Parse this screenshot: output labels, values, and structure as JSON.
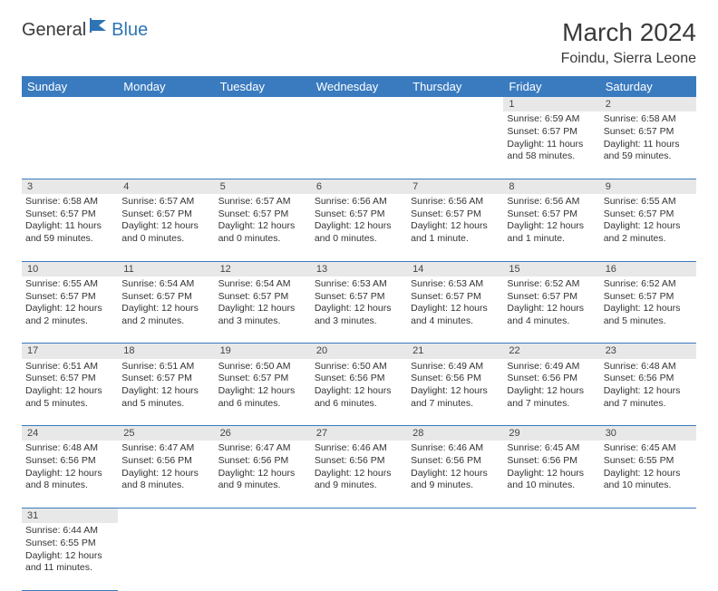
{
  "brand": {
    "part1": "General",
    "part2": "Blue"
  },
  "title": "March 2024",
  "location": "Foindu, Sierra Leone",
  "colors": {
    "header_bg": "#3a7bbf",
    "header_text": "#ffffff",
    "daynum_bg": "#e8e8e8",
    "border": "#3a7bbf",
    "logo_blue": "#2e74b5"
  },
  "weekdays": [
    "Sunday",
    "Monday",
    "Tuesday",
    "Wednesday",
    "Thursday",
    "Friday",
    "Saturday"
  ],
  "lead_blanks": 5,
  "days": [
    {
      "n": 1,
      "sr": "6:59 AM",
      "ss": "6:57 PM",
      "dl": "11 hours and 58 minutes."
    },
    {
      "n": 2,
      "sr": "6:58 AM",
      "ss": "6:57 PM",
      "dl": "11 hours and 59 minutes."
    },
    {
      "n": 3,
      "sr": "6:58 AM",
      "ss": "6:57 PM",
      "dl": "11 hours and 59 minutes."
    },
    {
      "n": 4,
      "sr": "6:57 AM",
      "ss": "6:57 PM",
      "dl": "12 hours and 0 minutes."
    },
    {
      "n": 5,
      "sr": "6:57 AM",
      "ss": "6:57 PM",
      "dl": "12 hours and 0 minutes."
    },
    {
      "n": 6,
      "sr": "6:56 AM",
      "ss": "6:57 PM",
      "dl": "12 hours and 0 minutes."
    },
    {
      "n": 7,
      "sr": "6:56 AM",
      "ss": "6:57 PM",
      "dl": "12 hours and 1 minute."
    },
    {
      "n": 8,
      "sr": "6:56 AM",
      "ss": "6:57 PM",
      "dl": "12 hours and 1 minute."
    },
    {
      "n": 9,
      "sr": "6:55 AM",
      "ss": "6:57 PM",
      "dl": "12 hours and 2 minutes."
    },
    {
      "n": 10,
      "sr": "6:55 AM",
      "ss": "6:57 PM",
      "dl": "12 hours and 2 minutes."
    },
    {
      "n": 11,
      "sr": "6:54 AM",
      "ss": "6:57 PM",
      "dl": "12 hours and 2 minutes."
    },
    {
      "n": 12,
      "sr": "6:54 AM",
      "ss": "6:57 PM",
      "dl": "12 hours and 3 minutes."
    },
    {
      "n": 13,
      "sr": "6:53 AM",
      "ss": "6:57 PM",
      "dl": "12 hours and 3 minutes."
    },
    {
      "n": 14,
      "sr": "6:53 AM",
      "ss": "6:57 PM",
      "dl": "12 hours and 4 minutes."
    },
    {
      "n": 15,
      "sr": "6:52 AM",
      "ss": "6:57 PM",
      "dl": "12 hours and 4 minutes."
    },
    {
      "n": 16,
      "sr": "6:52 AM",
      "ss": "6:57 PM",
      "dl": "12 hours and 5 minutes."
    },
    {
      "n": 17,
      "sr": "6:51 AM",
      "ss": "6:57 PM",
      "dl": "12 hours and 5 minutes."
    },
    {
      "n": 18,
      "sr": "6:51 AM",
      "ss": "6:57 PM",
      "dl": "12 hours and 5 minutes."
    },
    {
      "n": 19,
      "sr": "6:50 AM",
      "ss": "6:57 PM",
      "dl": "12 hours and 6 minutes."
    },
    {
      "n": 20,
      "sr": "6:50 AM",
      "ss": "6:56 PM",
      "dl": "12 hours and 6 minutes."
    },
    {
      "n": 21,
      "sr": "6:49 AM",
      "ss": "6:56 PM",
      "dl": "12 hours and 7 minutes."
    },
    {
      "n": 22,
      "sr": "6:49 AM",
      "ss": "6:56 PM",
      "dl": "12 hours and 7 minutes."
    },
    {
      "n": 23,
      "sr": "6:48 AM",
      "ss": "6:56 PM",
      "dl": "12 hours and 7 minutes."
    },
    {
      "n": 24,
      "sr": "6:48 AM",
      "ss": "6:56 PM",
      "dl": "12 hours and 8 minutes."
    },
    {
      "n": 25,
      "sr": "6:47 AM",
      "ss": "6:56 PM",
      "dl": "12 hours and 8 minutes."
    },
    {
      "n": 26,
      "sr": "6:47 AM",
      "ss": "6:56 PM",
      "dl": "12 hours and 9 minutes."
    },
    {
      "n": 27,
      "sr": "6:46 AM",
      "ss": "6:56 PM",
      "dl": "12 hours and 9 minutes."
    },
    {
      "n": 28,
      "sr": "6:46 AM",
      "ss": "6:56 PM",
      "dl": "12 hours and 9 minutes."
    },
    {
      "n": 29,
      "sr": "6:45 AM",
      "ss": "6:56 PM",
      "dl": "12 hours and 10 minutes."
    },
    {
      "n": 30,
      "sr": "6:45 AM",
      "ss": "6:55 PM",
      "dl": "12 hours and 10 minutes."
    },
    {
      "n": 31,
      "sr": "6:44 AM",
      "ss": "6:55 PM",
      "dl": "12 hours and 11 minutes."
    }
  ],
  "labels": {
    "sunrise": "Sunrise:",
    "sunset": "Sunset:",
    "daylight": "Daylight:"
  }
}
